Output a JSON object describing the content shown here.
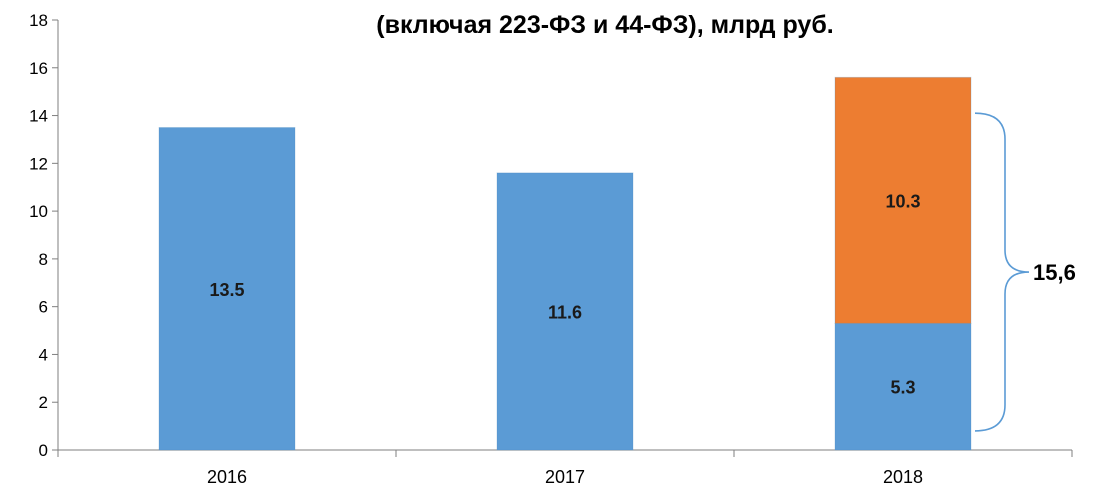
{
  "chart_data": {
    "type": "bar",
    "stacked": true,
    "title": "(включая 223-ФЗ и 44-ФЗ), млрд руб.",
    "categories": [
      "2016",
      "2017",
      "2018"
    ],
    "series": [
      {
        "values": [
          13.5,
          11.6,
          5.3
        ],
        "labels": [
          "13.5",
          "11.6",
          "5.3"
        ],
        "color": "#5b9bd5"
      },
      {
        "values": [
          0,
          0,
          10.3
        ],
        "labels": [
          "",
          "",
          "10.3"
        ],
        "color": "#ed7d31"
      }
    ],
    "ylim": [
      0,
      18
    ],
    "yticks": [
      "0",
      "2",
      "4",
      "6",
      "8",
      "10",
      "12",
      "14",
      "16",
      "18"
    ],
    "grid": false,
    "legend": "none",
    "annotation": {
      "text": "15,6",
      "category": "2018"
    }
  }
}
